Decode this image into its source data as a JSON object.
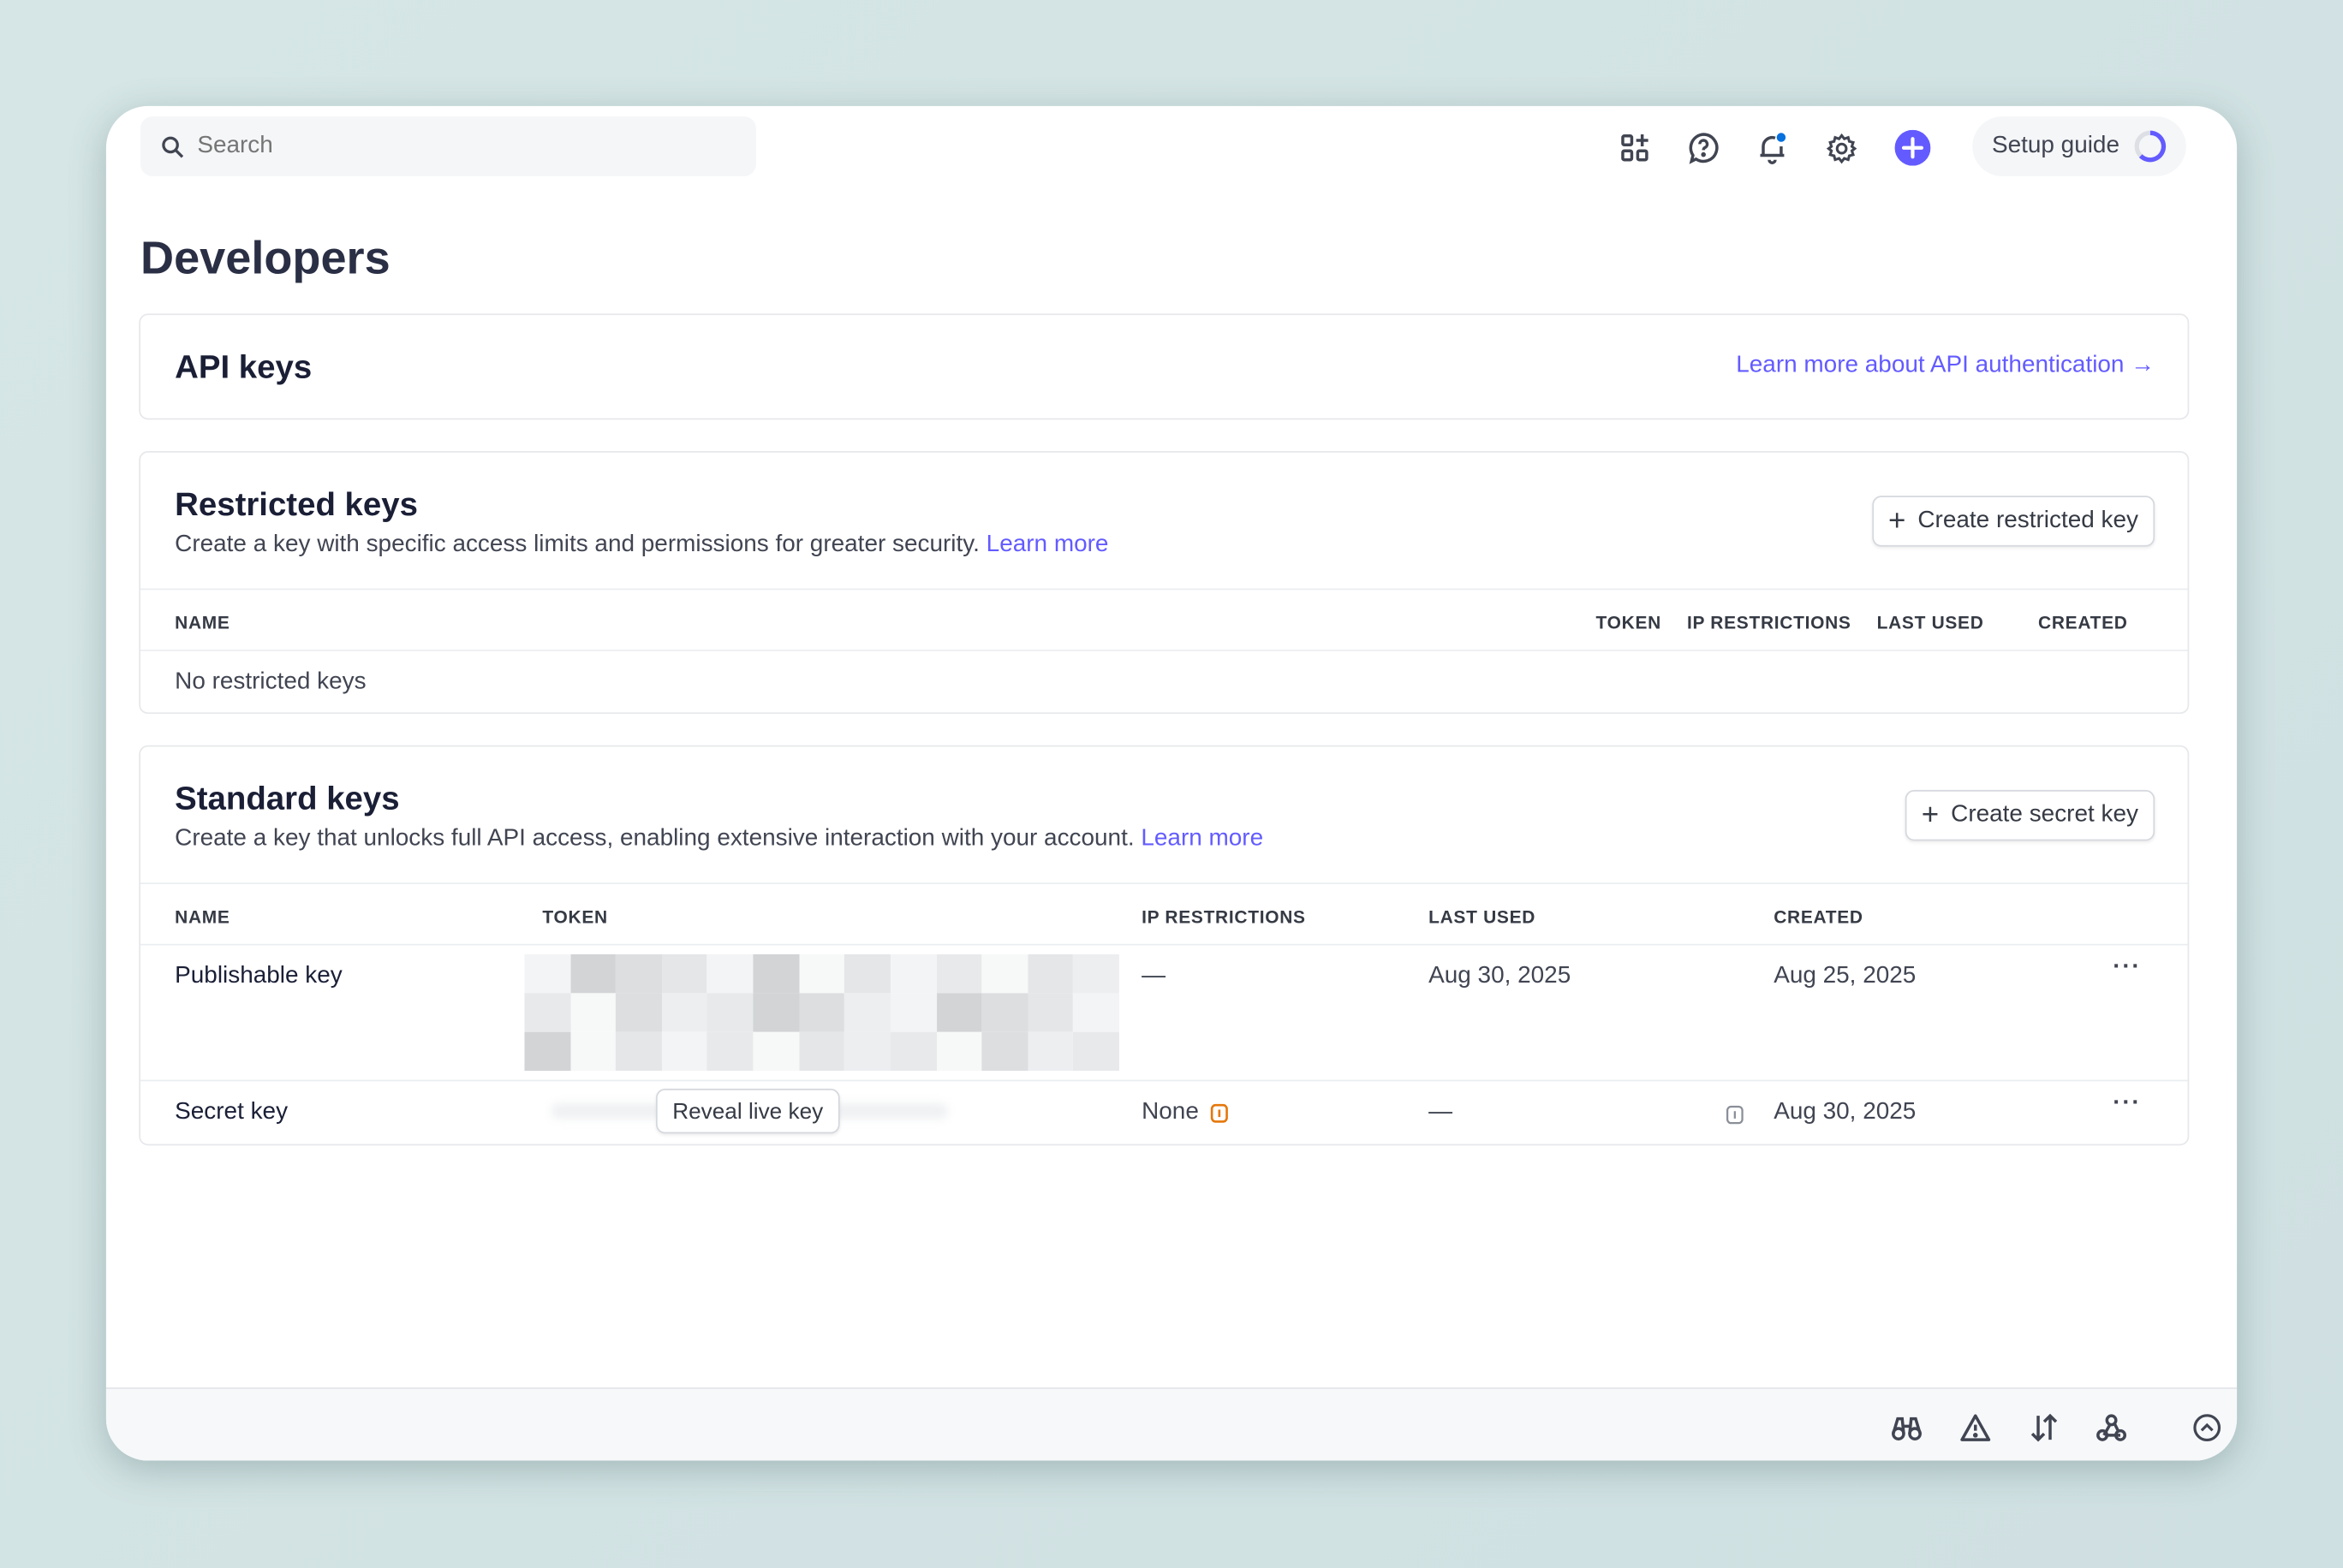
{
  "topbar": {
    "search_placeholder": "Search",
    "setup_guide": "Setup guide",
    "icons": [
      "apps-add-icon",
      "help-icon",
      "bell-icon",
      "gear-icon",
      "plus-icon"
    ],
    "accent": "#635bff",
    "notification_dot": "#0570de"
  },
  "page_title": "Developers",
  "api_keys": {
    "title": "API keys",
    "link": "Learn more about API authentication →"
  },
  "restricted": {
    "title": "Restricted keys",
    "description": "Create a key with specific access limits and permissions for greater security.",
    "learn_more": "Learn more",
    "button": "Create restricted key",
    "columns": [
      "NAME",
      "TOKEN",
      "IP RESTRICTIONS",
      "LAST USED",
      "CREATED"
    ],
    "empty": "No restricted keys"
  },
  "standard": {
    "title": "Standard keys",
    "description": "Create a key that unlocks full API access, enabling extensive interaction with your account.",
    "learn_more": "Learn more",
    "button": "Create secret key",
    "columns": [
      "NAME",
      "TOKEN",
      "IP RESTRICTIONS",
      "LAST USED",
      "CREATED"
    ],
    "rows": [
      {
        "name": "Publishable key",
        "ip": "—",
        "last_used": "Aug 30, 2025",
        "created": "Aug 25, 2025"
      },
      {
        "name": "Secret key",
        "reveal": "Reveal live key",
        "ip": "None",
        "last_used": "—",
        "created": "Aug 30, 2025"
      }
    ]
  },
  "footer": {
    "icons": [
      "binoculars-icon",
      "warning-icon",
      "sort-arrows-icon",
      "webhook-icon",
      "chevron-up-circle-icon"
    ]
  },
  "colors": {
    "warning": "#e5780b"
  }
}
